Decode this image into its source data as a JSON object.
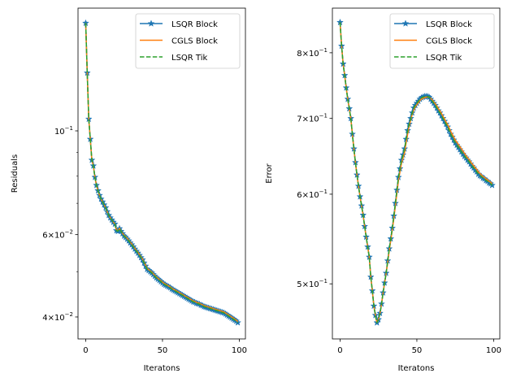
{
  "colors": {
    "lsqr_block": "#1f77b4",
    "cgls_block": "#ff7f0e",
    "lsqr_tik": "#2ca02c"
  },
  "chart_data": [
    {
      "type": "line",
      "xlabel": "Iteratons",
      "ylabel": "Residuals",
      "yscale": "log",
      "xlim": [
        -5,
        104
      ],
      "ylim": [
        0.0359,
        0.183
      ],
      "xticks": [
        0,
        50,
        100
      ],
      "yticks": [
        {
          "value": 0.1,
          "mantissa": "",
          "base": "10",
          "exp": "−1"
        },
        {
          "value": 0.06,
          "mantissa": "6",
          "base": "10",
          "exp": "−2"
        },
        {
          "value": 0.04,
          "mantissa": "4",
          "base": "10",
          "exp": "−2"
        }
      ],
      "yminor": [
        0.09,
        0.08,
        0.07,
        0.05
      ],
      "legend": "top-right",
      "grid": false,
      "series": [
        {
          "name": "LSQR Block",
          "style": "solid-star",
          "color": "#1f77b4",
          "values": [
            0.17,
            0.133,
            0.106,
            0.096,
            0.0866,
            0.0842,
            0.0796,
            0.0765,
            0.0745,
            0.0728,
            0.0715,
            0.0705,
            0.0695,
            0.0685,
            0.0672,
            0.066,
            0.0652,
            0.0645,
            0.0638,
            0.0632,
            0.0612,
            0.061,
            0.0618,
            0.061,
            0.0603,
            0.0596,
            0.0592,
            0.0587,
            0.0582,
            0.0576,
            0.0571,
            0.0565,
            0.0559,
            0.0553,
            0.0548,
            0.0542,
            0.0536,
            0.053,
            0.0522,
            0.0514,
            0.0506,
            0.0503,
            0.05,
            0.0497,
            0.0493,
            0.0489,
            0.0485,
            0.0482,
            0.0479,
            0.0476,
            0.0473,
            0.047,
            0.0468,
            0.0466,
            0.0464,
            0.0462,
            0.0459,
            0.0457,
            0.0455,
            0.0453,
            0.0451,
            0.0449,
            0.0447,
            0.0445,
            0.0443,
            0.0441,
            0.0439,
            0.0437,
            0.0435,
            0.0433,
            0.0431,
            0.043,
            0.0428,
            0.0427,
            0.0426,
            0.0424,
            0.0423,
            0.0421,
            0.042,
            0.0419,
            0.0418,
            0.0417,
            0.0416,
            0.0415,
            0.0414,
            0.0413,
            0.0412,
            0.0411,
            0.041,
            0.0409,
            0.0408,
            0.0406,
            0.0404,
            0.0402,
            0.04,
            0.0398,
            0.0396,
            0.0394,
            0.0392,
            0.0389
          ]
        },
        {
          "name": "CGLS Block",
          "style": "solid",
          "color": "#ff7f0e",
          "values": [
            0.17,
            0.133,
            0.106,
            0.096,
            0.0866,
            0.0842,
            0.0796,
            0.0765,
            0.0745,
            0.0728,
            0.0715,
            0.0705,
            0.0695,
            0.0685,
            0.0672,
            0.066,
            0.0652,
            0.0645,
            0.0638,
            0.0632,
            0.0614,
            0.0612,
            0.0619,
            0.0611,
            0.0604,
            0.0598,
            0.0594,
            0.0589,
            0.0584,
            0.0578,
            0.0573,
            0.0567,
            0.0561,
            0.0555,
            0.055,
            0.0544,
            0.0538,
            0.0532,
            0.0524,
            0.0516,
            0.0508,
            0.0505,
            0.0502,
            0.0499,
            0.0495,
            0.0491,
            0.0487,
            0.0484,
            0.0481,
            0.0478,
            0.0475,
            0.0472,
            0.047,
            0.0468,
            0.0466,
            0.0464,
            0.0461,
            0.0459,
            0.0457,
            0.0455,
            0.0453,
            0.0451,
            0.0449,
            0.0447,
            0.0445,
            0.0443,
            0.0441,
            0.0439,
            0.0437,
            0.0435,
            0.0433,
            0.0432,
            0.043,
            0.0429,
            0.0428,
            0.0426,
            0.0425,
            0.0423,
            0.0422,
            0.0421,
            0.042,
            0.0419,
            0.0418,
            0.0417,
            0.0416,
            0.0415,
            0.0414,
            0.0413,
            0.0412,
            0.0411,
            0.041,
            0.0408,
            0.0406,
            0.0404,
            0.0402,
            0.04,
            0.0398,
            0.0396,
            0.0394,
            0.0391
          ]
        },
        {
          "name": "LSQR Tik",
          "style": "dashed",
          "color": "#2ca02c",
          "values": [
            0.17,
            0.133,
            0.106,
            0.096,
            0.0866,
            0.0842,
            0.0796,
            0.0765,
            0.0745,
            0.0728,
            0.0715,
            0.0705,
            0.0695,
            0.0685,
            0.0672,
            0.066,
            0.0652,
            0.0645,
            0.0638,
            0.0632,
            0.0612,
            0.061,
            0.0618,
            0.061,
            0.0603,
            0.0596,
            0.0592,
            0.0587,
            0.0582,
            0.0576,
            0.0571,
            0.0565,
            0.0559,
            0.0553,
            0.0548,
            0.0542,
            0.0536,
            0.053,
            0.0522,
            0.0514,
            0.0506,
            0.0503,
            0.05,
            0.0497,
            0.0493,
            0.0489,
            0.0485,
            0.0482,
            0.0479,
            0.0476,
            0.0473,
            0.047,
            0.0468,
            0.0466,
            0.0464,
            0.0462,
            0.0459,
            0.0457,
            0.0455,
            0.0453,
            0.0451,
            0.0449,
            0.0447,
            0.0445,
            0.0443,
            0.0441,
            0.0439,
            0.0437,
            0.0435,
            0.0433,
            0.0431,
            0.043,
            0.0428,
            0.0427,
            0.0426,
            0.0424,
            0.0423,
            0.0421,
            0.042,
            0.0419,
            0.0418,
            0.0417,
            0.0416,
            0.0415,
            0.0414,
            0.0413,
            0.0412,
            0.0411,
            0.041,
            0.0409,
            0.0408,
            0.0406,
            0.0404,
            0.0402,
            0.04,
            0.0398,
            0.0396,
            0.0394,
            0.0392,
            0.0389
          ]
        }
      ]
    },
    {
      "type": "line",
      "xlabel": "Iteratons",
      "ylabel": "Error",
      "yscale": "log",
      "xlim": [
        -5,
        104
      ],
      "ylim": [
        0.447,
        0.876
      ],
      "xticks": [
        0,
        50,
        100
      ],
      "yticks": [
        {
          "value": 0.8,
          "mantissa": "8",
          "base": "10",
          "exp": "−1"
        },
        {
          "value": 0.7,
          "mantissa": "7",
          "base": "10",
          "exp": "−1"
        },
        {
          "value": 0.6,
          "mantissa": "6",
          "base": "10",
          "exp": "−1"
        },
        {
          "value": 0.5,
          "mantissa": "5",
          "base": "10",
          "exp": "−1"
        }
      ],
      "yminor": [],
      "legend": "top-right",
      "grid": false,
      "series": [
        {
          "name": "LSQR Block",
          "style": "solid-star",
          "color": "#1f77b4",
          "values": [
            0.851,
            0.811,
            0.782,
            0.764,
            0.745,
            0.728,
            0.714,
            0.7,
            0.678,
            0.658,
            0.64,
            0.624,
            0.61,
            0.597,
            0.586,
            0.575,
            0.562,
            0.55,
            0.539,
            0.528,
            0.507,
            0.493,
            0.478,
            0.469,
            0.462,
            0.465,
            0.471,
            0.48,
            0.491,
            0.501,
            0.511,
            0.524,
            0.537,
            0.548,
            0.56,
            0.574,
            0.589,
            0.605,
            0.621,
            0.632,
            0.643,
            0.65,
            0.658,
            0.671,
            0.683,
            0.692,
            0.7,
            0.708,
            0.715,
            0.719,
            0.722,
            0.725,
            0.728,
            0.73,
            0.731,
            0.732,
            0.732,
            0.732,
            0.731,
            0.728,
            0.725,
            0.722,
            0.719,
            0.715,
            0.711,
            0.708,
            0.704,
            0.7,
            0.696,
            0.692,
            0.688,
            0.683,
            0.678,
            0.674,
            0.67,
            0.666,
            0.663,
            0.66,
            0.657,
            0.654,
            0.651,
            0.648,
            0.646,
            0.643,
            0.641,
            0.638,
            0.635,
            0.633,
            0.63,
            0.628,
            0.625,
            0.623,
            0.622,
            0.62,
            0.619,
            0.617,
            0.616,
            0.614,
            0.613,
            0.611
          ]
        },
        {
          "name": "CGLS Block",
          "style": "solid",
          "color": "#ff7f0e",
          "values": [
            0.851,
            0.811,
            0.782,
            0.764,
            0.745,
            0.728,
            0.714,
            0.7,
            0.678,
            0.658,
            0.64,
            0.624,
            0.61,
            0.597,
            0.586,
            0.575,
            0.562,
            0.55,
            0.539,
            0.528,
            0.507,
            0.493,
            0.478,
            0.469,
            0.462,
            0.465,
            0.471,
            0.48,
            0.491,
            0.501,
            0.511,
            0.522,
            0.535,
            0.546,
            0.558,
            0.571,
            0.586,
            0.601,
            0.617,
            0.628,
            0.639,
            0.646,
            0.653,
            0.666,
            0.678,
            0.689,
            0.698,
            0.706,
            0.712,
            0.717,
            0.72,
            0.723,
            0.726,
            0.728,
            0.729,
            0.73,
            0.731,
            0.731,
            0.731,
            0.729,
            0.727,
            0.724,
            0.721,
            0.718,
            0.714,
            0.711,
            0.707,
            0.703,
            0.699,
            0.695,
            0.691,
            0.687,
            0.682,
            0.678,
            0.674,
            0.67,
            0.667,
            0.664,
            0.661,
            0.658,
            0.655,
            0.652,
            0.649,
            0.646,
            0.644,
            0.641,
            0.638,
            0.636,
            0.633,
            0.631,
            0.628,
            0.626,
            0.624,
            0.622,
            0.621,
            0.619,
            0.618,
            0.616,
            0.615,
            0.613
          ]
        },
        {
          "name": "LSQR Tik",
          "style": "dashed",
          "color": "#2ca02c",
          "values": [
            0.851,
            0.811,
            0.782,
            0.764,
            0.745,
            0.728,
            0.714,
            0.7,
            0.678,
            0.658,
            0.64,
            0.624,
            0.61,
            0.597,
            0.586,
            0.575,
            0.562,
            0.55,
            0.539,
            0.528,
            0.507,
            0.493,
            0.478,
            0.469,
            0.462,
            0.465,
            0.471,
            0.48,
            0.491,
            0.501,
            0.511,
            0.524,
            0.537,
            0.548,
            0.56,
            0.574,
            0.589,
            0.605,
            0.621,
            0.632,
            0.643,
            0.65,
            0.658,
            0.671,
            0.683,
            0.692,
            0.7,
            0.708,
            0.715,
            0.719,
            0.722,
            0.725,
            0.728,
            0.73,
            0.731,
            0.732,
            0.732,
            0.732,
            0.731,
            0.728,
            0.725,
            0.722,
            0.719,
            0.715,
            0.711,
            0.708,
            0.704,
            0.7,
            0.696,
            0.692,
            0.688,
            0.683,
            0.678,
            0.674,
            0.67,
            0.666,
            0.663,
            0.66,
            0.657,
            0.654,
            0.651,
            0.648,
            0.646,
            0.643,
            0.641,
            0.638,
            0.635,
            0.633,
            0.63,
            0.628,
            0.625,
            0.623,
            0.622,
            0.62,
            0.619,
            0.617,
            0.616,
            0.614,
            0.613,
            0.611
          ]
        }
      ]
    }
  ]
}
